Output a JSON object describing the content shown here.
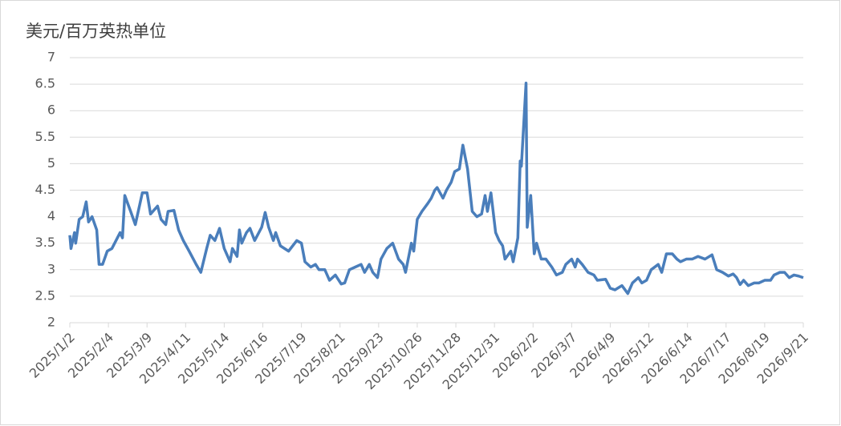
{
  "chart_data": {
    "type": "line",
    "y_label": "美元/百万英热单位",
    "x": [
      "2025/1/2",
      "2025/1/3",
      "2025/1/6",
      "2025/1/7",
      "2025/1/10",
      "2025/1/13",
      "2025/1/16",
      "2025/1/18",
      "2025/1/21",
      "2025/1/25",
      "2025/1/27",
      "2025/1/30",
      "2025/2/3",
      "2025/2/7",
      "2025/2/14",
      "2025/2/16",
      "2025/2/18",
      "2025/2/23",
      "2025/2/27",
      "2025/3/5",
      "2025/3/9",
      "2025/3/12",
      "2025/3/18",
      "2025/3/21",
      "2025/3/25",
      "2025/3/27",
      "2025/4/1",
      "2025/4/5",
      "2025/4/9",
      "2025/4/14",
      "2025/4/20",
      "2025/4/24",
      "2025/4/29",
      "2025/5/2",
      "2025/5/6",
      "2025/5/10",
      "2025/5/14",
      "2025/5/19",
      "2025/5/21",
      "2025/5/25",
      "2025/5/27",
      "2025/5/29",
      "2025/6/2",
      "2025/6/5",
      "2025/6/9",
      "2025/6/15",
      "2025/6/18",
      "2025/6/21",
      "2025/6/25",
      "2025/6/27",
      "2025/7/1",
      "2025/7/8",
      "2025/7/15",
      "2025/7/19",
      "2025/7/22",
      "2025/7/27",
      "2025/7/31",
      "2025/8/3",
      "2025/8/8",
      "2025/8/12",
      "2025/8/17",
      "2025/8/22",
      "2025/8/25",
      "2025/8/29",
      "2025/9/3",
      "2025/9/8",
      "2025/9/11",
      "2025/9/15",
      "2025/9/18",
      "2025/9/22",
      "2025/9/25",
      "2025/9/30",
      "2025/10/5",
      "2025/10/10",
      "2025/10/14",
      "2025/10/16",
      "2025/10/21",
      "2025/10/23",
      "2025/10/26",
      "2025/10/30",
      "2025/11/4",
      "2025/11/7",
      "2025/11/10",
      "2025/11/12",
      "2025/11/17",
      "2025/11/20",
      "2025/11/24",
      "2025/11/27",
      "2025/12/1",
      "2025/12/4",
      "2025/12/8",
      "2025/12/12",
      "2025/12/16",
      "2025/12/20",
      "2025/12/23",
      "2025/12/25",
      "2025/12/28",
      "2026/1/1",
      "2026/1/4",
      "2026/1/7",
      "2026/1/9",
      "2026/1/14",
      "2026/1/16",
      "2026/1/20",
      "2026/1/22",
      "2026/1/23",
      "2026/1/27",
      "2026/1/28",
      "2026/1/31",
      "2026/2/3",
      "2026/2/5",
      "2026/2/9",
      "2026/2/13",
      "2026/2/18",
      "2026/2/22",
      "2026/2/27",
      "2026/3/2",
      "2026/3/7",
      "2026/3/10",
      "2026/3/12",
      "2026/3/16",
      "2026/3/21",
      "2026/3/26",
      "2026/3/29",
      "2026/4/5",
      "2026/4/9",
      "2026/4/13",
      "2026/4/19",
      "2026/4/24",
      "2026/4/28",
      "2026/5/3",
      "2026/5/6",
      "2026/5/10",
      "2026/5/14",
      "2026/5/20",
      "2026/5/23",
      "2026/5/27",
      "2026/6/1",
      "2026/6/5",
      "2026/6/8",
      "2026/6/13",
      "2026/6/18",
      "2026/6/23",
      "2026/6/29",
      "2026/7/5",
      "2026/7/9",
      "2026/7/14",
      "2026/7/19",
      "2026/7/23",
      "2026/7/26",
      "2026/7/29",
      "2026/8/1",
      "2026/8/5",
      "2026/8/10",
      "2026/8/14",
      "2026/8/19",
      "2026/8/24",
      "2026/8/27",
      "2026/9/1",
      "2026/9/5",
      "2026/9/9",
      "2026/9/13",
      "2026/9/17",
      "2026/9/21"
    ],
    "series": [
      {
        "color": "#4a7ebb",
        "values": [
          3.65,
          3.4,
          3.7,
          3.5,
          3.95,
          4.0,
          4.28,
          3.9,
          4.0,
          3.75,
          3.1,
          3.1,
          3.35,
          3.4,
          3.7,
          3.6,
          4.4,
          4.1,
          3.85,
          4.45,
          4.45,
          4.05,
          4.2,
          3.95,
          3.85,
          4.1,
          4.12,
          3.75,
          3.55,
          3.35,
          3.1,
          2.95,
          3.4,
          3.65,
          3.55,
          3.78,
          3.4,
          3.15,
          3.4,
          3.25,
          3.75,
          3.5,
          3.7,
          3.78,
          3.55,
          3.8,
          4.08,
          3.8,
          3.55,
          3.7,
          3.45,
          3.35,
          3.55,
          3.5,
          3.15,
          3.05,
          3.1,
          3.0,
          3.0,
          2.8,
          2.9,
          2.73,
          2.75,
          3.0,
          3.05,
          3.1,
          2.95,
          3.1,
          2.95,
          2.85,
          3.2,
          3.4,
          3.5,
          3.2,
          3.1,
          2.95,
          3.5,
          3.35,
          3.95,
          4.1,
          4.25,
          4.35,
          4.5,
          4.55,
          4.35,
          4.5,
          4.65,
          4.85,
          4.9,
          5.35,
          4.9,
          4.1,
          4.0,
          4.05,
          4.4,
          4.1,
          4.45,
          3.7,
          3.55,
          3.45,
          3.2,
          3.35,
          3.15,
          3.6,
          5.05,
          4.95,
          6.52,
          3.8,
          4.4,
          3.3,
          3.5,
          3.2,
          3.2,
          3.05,
          2.9,
          2.95,
          3.1,
          3.2,
          3.05,
          3.2,
          3.1,
          2.95,
          2.9,
          2.8,
          2.82,
          2.65,
          2.62,
          2.7,
          2.55,
          2.75,
          2.85,
          2.75,
          2.8,
          3.0,
          3.1,
          2.95,
          3.3,
          3.3,
          3.2,
          3.15,
          3.2,
          3.2,
          3.25,
          3.2,
          3.28,
          3.0,
          2.95,
          2.88,
          2.92,
          2.85,
          2.72,
          2.8,
          2.7,
          2.75,
          2.75,
          2.8,
          2.8,
          2.9,
          2.95,
          2.95,
          2.85,
          2.9,
          2.88,
          2.85
        ]
      }
    ],
    "xlim": [
      "2025/1/2",
      "2026/9/21"
    ],
    "xticks": [
      "2025/1/2",
      "2025/2/4",
      "2025/3/9",
      "2025/4/11",
      "2025/5/14",
      "2025/6/16",
      "2025/7/19",
      "2025/8/21",
      "2025/9/23",
      "2025/10/26",
      "2025/11/28",
      "2025/12/31",
      "2026/2/2",
      "2026/3/7",
      "2026/4/9",
      "2026/5/12",
      "2026/6/14",
      "2026/7/17",
      "2026/8/19",
      "2026/9/21"
    ],
    "ylim": [
      2,
      7
    ],
    "yticks": [
      2,
      2.5,
      3,
      3.5,
      4,
      4.5,
      5,
      5.5,
      6,
      6.5,
      7
    ],
    "grid": true
  }
}
